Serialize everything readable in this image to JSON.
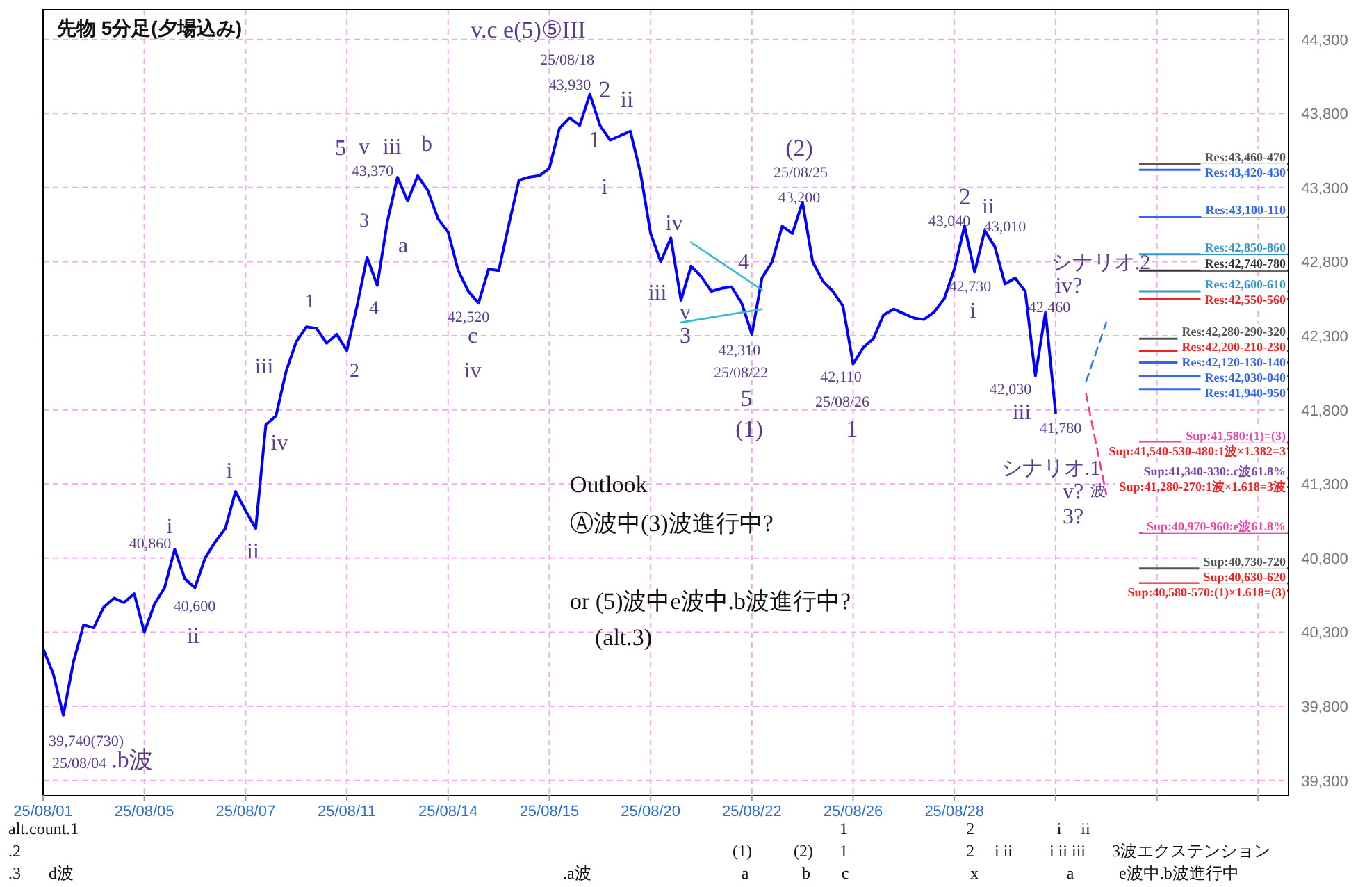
{
  "chart_data": {
    "type": "line",
    "title": "先物 5分足(夕場込み)",
    "categories": [
      "25/08/01",
      null,
      null,
      null,
      null,
      null,
      null,
      null,
      null,
      null,
      "25/08/05",
      null,
      null,
      null,
      null,
      null,
      null,
      null,
      null,
      null,
      "25/08/07",
      null,
      null,
      null,
      null,
      null,
      null,
      null,
      null,
      null,
      "25/08/11",
      null,
      null,
      null,
      null,
      null,
      null,
      null,
      null,
      null,
      "25/08/14",
      null,
      null,
      null,
      null,
      null,
      null,
      null,
      null,
      null,
      "25/08/15",
      null,
      null,
      null,
      null,
      null,
      null,
      null,
      null,
      null,
      "25/08/20",
      null,
      null,
      null,
      null,
      null,
      null,
      null,
      null,
      null,
      "25/08/22",
      null,
      null,
      null,
      null,
      null,
      null,
      null,
      null,
      null,
      "25/08/26",
      null,
      null,
      null,
      null,
      null,
      null,
      null,
      null,
      null,
      "25/08/28",
      null,
      null,
      null,
      null,
      null,
      null,
      null,
      null,
      null,
      null,
      null,
      null,
      null,
      null,
      null,
      null,
      null,
      null,
      null,
      null,
      null,
      null,
      null,
      null,
      null,
      null,
      null,
      null,
      null,
      null,
      null,
      null
    ],
    "ylim": [
      39200,
      44500
    ],
    "yticks": [
      {
        "value": 39300,
        "label": "39,300"
      },
      {
        "value": 39800,
        "label": "39,800"
      },
      {
        "value": 40300,
        "label": "40,300"
      },
      {
        "value": 40800,
        "label": "40,800"
      },
      {
        "value": 41300,
        "label": "41,300"
      },
      {
        "value": 41800,
        "label": "41,800"
      },
      {
        "value": 42300,
        "label": "42,300"
      },
      {
        "value": 42800,
        "label": "42,800"
      },
      {
        "value": 43300,
        "label": "43,300"
      },
      {
        "value": 43800,
        "label": "43,800"
      },
      {
        "value": 44300,
        "label": "44,300"
      }
    ],
    "grid": true,
    "series": [
      {
        "color": "#0000ff",
        "values": [
          40190,
          40020,
          39740,
          40100,
          40350,
          40330,
          40470,
          40530,
          40500,
          40560,
          40300,
          40490,
          40600,
          40860,
          40660,
          40600,
          40800,
          40910,
          41000,
          41250,
          41120,
          41000,
          41700,
          41760,
          42060,
          42260,
          42360,
          42350,
          42250,
          42310,
          42200,
          42500,
          42830,
          42640,
          43070,
          43370,
          43210,
          43380,
          43280,
          43090,
          43000,
          42740,
          42600,
          42520,
          42750,
          42740,
          43050,
          43350,
          43370,
          43380,
          43430,
          43700,
          43770,
          43720,
          43930,
          43720,
          43620,
          43650,
          43680,
          43400,
          42990,
          42800,
          42960,
          42540,
          42770,
          42700,
          42600,
          42620,
          42630,
          42520,
          42310,
          42690,
          42800,
          43040,
          42990,
          43200,
          42800,
          42670,
          42600,
          42500,
          42110,
          42220,
          42280,
          42440,
          42480,
          42450,
          42420,
          42410,
          42460,
          42550,
          42750,
          43040,
          42730,
          43010,
          42900,
          42650,
          42690,
          42600,
          42030,
          42460,
          41780,
          null,
          null,
          null,
          null,
          null,
          null,
          null,
          null,
          null,
          null,
          null,
          null,
          null,
          null,
          null,
          null,
          null,
          null,
          null,
          null,
          null,
          null
        ]
      },
      {
        "color": "#33bbcc",
        "values": [
          null,
          null,
          null,
          null,
          null,
          null,
          null,
          null,
          null,
          null,
          null,
          null,
          null,
          null,
          null,
          null,
          null,
          null,
          null,
          null,
          null,
          null,
          null,
          null,
          null,
          null,
          null,
          null,
          null,
          null,
          null,
          null,
          null,
          null,
          null,
          null,
          null,
          null,
          null,
          null,
          null,
          null,
          null,
          null,
          null,
          null,
          null,
          null,
          null,
          null,
          null,
          null,
          null,
          null,
          null,
          null,
          null,
          null,
          null,
          null,
          null,
          null,
          null,
          null,
          42930,
          null,
          null,
          null,
          null,
          null,
          null,
          42610,
          null,
          null,
          null,
          null,
          null,
          null,
          null,
          null,
          null,
          null,
          null,
          null,
          null,
          null,
          null,
          null,
          null,
          null,
          null,
          null,
          null,
          null,
          null,
          null,
          null,
          null,
          null,
          null,
          null,
          null,
          null,
          null,
          null,
          null,
          null,
          null,
          null,
          null,
          null,
          null,
          null,
          null,
          null,
          null,
          null,
          null,
          null,
          null,
          null,
          null,
          null
        ]
      },
      {
        "color": "#33bbcc",
        "values": [
          null,
          null,
          null,
          null,
          null,
          null,
          null,
          null,
          null,
          null,
          null,
          null,
          null,
          null,
          null,
          null,
          null,
          null,
          null,
          null,
          null,
          null,
          null,
          null,
          null,
          null,
          null,
          null,
          null,
          null,
          null,
          null,
          null,
          null,
          null,
          null,
          null,
          null,
          null,
          null,
          null,
          null,
          null,
          null,
          null,
          null,
          null,
          null,
          null,
          null,
          null,
          null,
          null,
          null,
          null,
          null,
          null,
          null,
          null,
          null,
          null,
          null,
          null,
          42390,
          null,
          null,
          null,
          null,
          null,
          null,
          null,
          42480,
          null,
          null,
          null,
          null,
          null,
          null,
          null,
          null,
          null,
          null,
          null,
          null,
          null,
          null,
          null,
          null,
          null,
          null,
          null,
          null,
          null,
          null,
          null,
          null,
          null,
          null,
          null,
          null,
          null,
          null,
          null,
          null,
          null,
          null,
          null,
          null,
          null,
          null,
          null,
          null,
          null,
          null,
          null,
          null,
          null,
          null,
          null,
          null,
          null,
          null,
          null
        ]
      },
      {
        "color": "#3377ee",
        "line_style": "dashed",
        "values": [
          null,
          null,
          null,
          null,
          null,
          null,
          null,
          null,
          null,
          null,
          null,
          null,
          null,
          null,
          null,
          null,
          null,
          null,
          null,
          null,
          null,
          null,
          null,
          null,
          null,
          null,
          null,
          null,
          null,
          null,
          null,
          null,
          null,
          null,
          null,
          null,
          null,
          null,
          null,
          null,
          null,
          null,
          null,
          null,
          null,
          null,
          null,
          null,
          null,
          null,
          null,
          null,
          null,
          null,
          null,
          null,
          null,
          null,
          null,
          null,
          null,
          null,
          null,
          null,
          null,
          null,
          null,
          null,
          null,
          null,
          null,
          null,
          null,
          null,
          null,
          null,
          null,
          null,
          null,
          null,
          null,
          null,
          null,
          null,
          null,
          null,
          null,
          null,
          null,
          null,
          null,
          null,
          null,
          null,
          null,
          null,
          null,
          null,
          null,
          null,
          null,
          null,
          null,
          41990,
          null,
          42390,
          null,
          null,
          null,
          null,
          null,
          null,
          null,
          null,
          null,
          null,
          null,
          null,
          null,
          null,
          null,
          null,
          null
        ]
      },
      {
        "color": "#ff3388",
        "line_style": "dashed",
        "values": [
          null,
          null,
          null,
          null,
          null,
          null,
          null,
          null,
          null,
          null,
          null,
          null,
          null,
          null,
          null,
          null,
          null,
          null,
          null,
          null,
          null,
          null,
          null,
          null,
          null,
          null,
          null,
          null,
          null,
          null,
          null,
          null,
          null,
          null,
          null,
          null,
          null,
          null,
          null,
          null,
          null,
          null,
          null,
          null,
          null,
          null,
          null,
          null,
          null,
          null,
          null,
          null,
          null,
          null,
          null,
          null,
          null,
          null,
          null,
          null,
          null,
          null,
          null,
          null,
          null,
          null,
          null,
          null,
          null,
          null,
          null,
          null,
          null,
          null,
          null,
          null,
          null,
          null,
          null,
          null,
          null,
          null,
          null,
          null,
          null,
          null,
          null,
          null,
          null,
          null,
          null,
          null,
          null,
          null,
          null,
          null,
          null,
          null,
          null,
          null,
          null,
          null,
          null,
          41910,
          null,
          41230,
          null,
          null,
          null,
          null,
          null,
          null,
          null,
          null,
          null,
          null,
          null,
          null,
          null,
          null,
          null,
          null,
          null
        ]
      }
    ],
    "ref_lines": [
      {
        "axis": "y",
        "value": 43460,
        "label": "Res:43,460-470",
        "color": "#555555"
      },
      {
        "axis": "y",
        "value": 43420,
        "label": "Res:43,420-430",
        "color": "#3366ee"
      },
      {
        "axis": "y",
        "value": 43100,
        "label": "Res:43,100-110",
        "color": "#3366ee"
      },
      {
        "axis": "y",
        "value": 42850,
        "label": "Res:42,850-860",
        "color": "#3399cc"
      },
      {
        "axis": "y",
        "value": 42740,
        "label": "Res:42,740-780",
        "color": "#333333"
      },
      {
        "axis": "y",
        "value": 42600,
        "label": "Res:42,600-610",
        "color": "#3399cc"
      },
      {
        "axis": "y",
        "value": 42550,
        "label": "Res:42,550-560",
        "color": "#ee2222"
      },
      {
        "axis": "y",
        "value": 42280,
        "label": "Res:42,280-290-320",
        "color": "#555555"
      },
      {
        "axis": "y",
        "value": 42200,
        "label": "Res:42,200-210-230",
        "color": "#ee2222"
      },
      {
        "axis": "y",
        "value": 42120,
        "label": "Res:42,120-130-140",
        "color": "#3366ee"
      },
      {
        "axis": "y",
        "value": 42030,
        "label": "Res:42,030-040",
        "color": "#3366ee"
      },
      {
        "axis": "y",
        "value": 41940,
        "label": "Res:41,940-950",
        "color": "#3366ee"
      },
      {
        "axis": "y",
        "value": 41580,
        "label": "Sup:41,580:(1)=(3)",
        "color": "#ee44aa"
      },
      {
        "axis": "y",
        "value": 41540,
        "label": "Sup:41,540-530-480:1波×1.382=3",
        "color": "#ee2222"
      },
      {
        "axis": "y",
        "value": 41340,
        "label": "Sup:41,340-330:.c波61.8%",
        "color": "#7744aa"
      },
      {
        "axis": "y",
        "value": 41280,
        "label": "Sup:41,280-270:1波×1.618=3波",
        "color": "#ee2222"
      },
      {
        "axis": "y",
        "value": 40970,
        "label": "Sup:40,970-960:e波61.8%",
        "color": "#ee44aa"
      },
      {
        "axis": "y",
        "value": 40730,
        "label": "Sup:40,730-720",
        "color": "#555555"
      },
      {
        "axis": "y",
        "value": 40630,
        "label": "Sup:40,630-620",
        "color": "#ee2222"
      },
      {
        "axis": "y",
        "value": 40580,
        "label": "Sup:40,580-570:(1)×1.618=(3)",
        "color": "#ee2222"
      }
    ],
    "annotations": [
      "v.c e(5)⑤III",
      "25/08/18",
      "43,930",
      "2",
      "ii",
      "1",
      "i",
      "5",
      "v",
      "iii",
      "b",
      "43,370",
      "3",
      "a",
      "4",
      "1",
      "2",
      "iii",
      "iv",
      "i",
      "ii",
      "i",
      "40,860",
      "40,600",
      "ii",
      "39,740(730)",
      "25/08/04",
      ".b波",
      "42,520",
      "c",
      "iv",
      "iv",
      "iii",
      "v",
      "3",
      "4",
      "42,310",
      "25/08/22",
      "5",
      "(1)",
      "(2)",
      "25/08/25",
      "43,200",
      "42,110",
      "25/08/26",
      "1",
      "2",
      "ii",
      "43,040",
      "43,010",
      "42,730",
      "i",
      "iv?",
      "42,460",
      "シナリオ.2",
      "42,030",
      "iii",
      "41,780",
      "シナリオ.1",
      "v?",
      "波",
      "3?",
      "Outlook",
      "Ⓐ波中(3)波進行中?",
      "or (5)波中e波中.b波進行中?",
      "(alt.3)",
      "alt.count.1",
      ".2",
      ".3",
      "d波",
      ".a波",
      "1",
      "2",
      "i",
      "ii",
      "(1)",
      "(2)",
      "1",
      "2",
      "i ii",
      "i ii iii",
      "3波エクステンション",
      "a",
      "b",
      "c",
      "x",
      "a",
      "e波中.b波進行中"
    ]
  }
}
